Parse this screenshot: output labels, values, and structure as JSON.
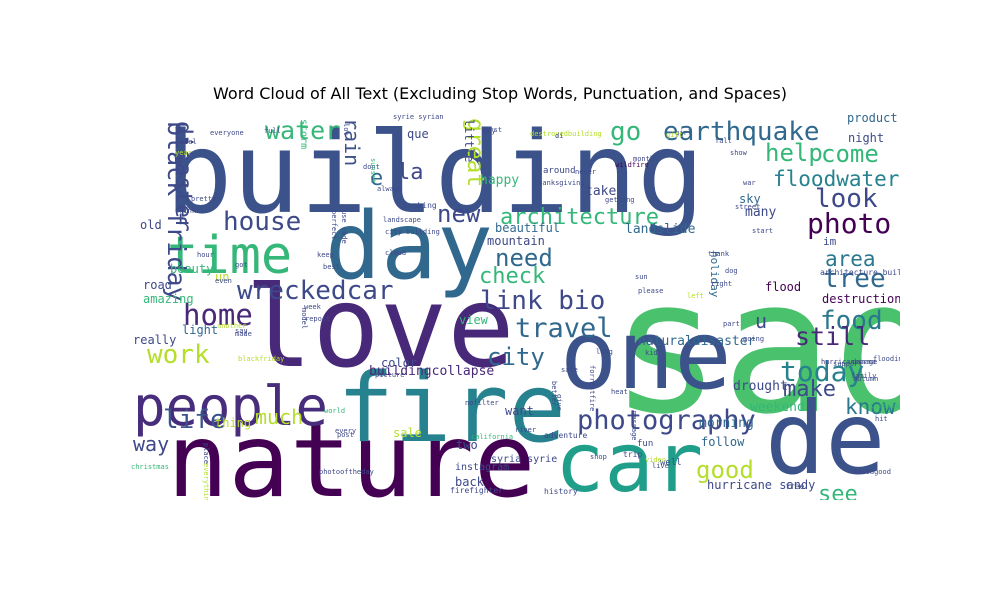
{
  "chart_data": {
    "type": "wordcloud",
    "title": "Word Cloud of All Text (Excluding Stop Words, Punctuation, and Spaces)",
    "words": [
      {
        "text": "building",
        "color": "#3b528b"
      },
      {
        "text": "sad",
        "color": "#4ac16d"
      },
      {
        "text": "love",
        "color": "#482878"
      },
      {
        "text": "day",
        "color": "#31688e"
      },
      {
        "text": "nature",
        "color": "#440154"
      },
      {
        "text": "fire",
        "color": "#26828e"
      },
      {
        "text": "one",
        "color": "#3b528b"
      },
      {
        "text": "car",
        "color": "#1f9e89"
      },
      {
        "text": "de",
        "color": "#3b528b"
      },
      {
        "text": "people",
        "color": "#472d7b"
      },
      {
        "text": "time",
        "color": "#35b779"
      },
      {
        "text": "wreckedcar",
        "color": "#3e4989"
      },
      {
        "text": "photo",
        "color": "#440154"
      },
      {
        "text": "earthquake",
        "color": "#31688e"
      },
      {
        "text": "photography",
        "color": "#3e4989"
      },
      {
        "text": "link bio",
        "color": "#3e4989"
      },
      {
        "text": "home",
        "color": "#482878"
      },
      {
        "text": "house",
        "color": "#3e4989"
      },
      {
        "text": "travel",
        "color": "#31688e"
      },
      {
        "text": "architecture",
        "color": "#35b779"
      },
      {
        "text": "water",
        "color": "#35b779"
      },
      {
        "text": "black friday",
        "color": "#3e4989"
      },
      {
        "text": "today",
        "color": "#26828e"
      },
      {
        "text": "food",
        "color": "#2a788e"
      },
      {
        "text": "need",
        "color": "#31688e"
      },
      {
        "text": "tree",
        "color": "#31688e"
      },
      {
        "text": "look",
        "color": "#3e4989"
      },
      {
        "text": "go",
        "color": "#35b779"
      },
      {
        "text": "work",
        "color": "#b5de2b"
      },
      {
        "text": "city",
        "color": "#31688e"
      },
      {
        "text": "life",
        "color": "#3b528b"
      },
      {
        "text": "good",
        "color": "#b5de2b"
      },
      {
        "text": "new",
        "color": "#3e4989"
      },
      {
        "text": "check",
        "color": "#35b779"
      },
      {
        "text": "help",
        "color": "#35b779"
      },
      {
        "text": "come",
        "color": "#35b779"
      },
      {
        "text": "floodwater",
        "color": "#26828e"
      },
      {
        "text": "area",
        "color": "#2a788e"
      },
      {
        "text": "still",
        "color": "#482878"
      },
      {
        "text": "make",
        "color": "#3e4989"
      },
      {
        "text": "see",
        "color": "#35b779"
      },
      {
        "text": "know",
        "color": "#2a788e"
      },
      {
        "text": "much",
        "color": "#b5de2b"
      },
      {
        "text": "disaster",
        "color": "#3e4989"
      },
      {
        "text": "great",
        "color": "#b5de2b"
      },
      {
        "text": "la",
        "color": "#3e4989"
      },
      {
        "text": "rain",
        "color": "#3b528b"
      },
      {
        "text": "way",
        "color": "#3e4989"
      },
      {
        "text": "e",
        "color": "#31688e"
      },
      {
        "text": "u",
        "color": "#3e4989"
      },
      {
        "text": "landslide",
        "color": "#31688e"
      },
      {
        "text": "destruction",
        "color": "#440154"
      },
      {
        "text": "buildingcollapse",
        "color": "#482878"
      },
      {
        "text": "flood",
        "color": "#440154"
      },
      {
        "text": "hurricane sandy",
        "color": "#3e4989"
      },
      {
        "text": "morning",
        "color": "#31688e"
      },
      {
        "text": "weekend",
        "color": "#35b779"
      },
      {
        "text": "drought",
        "color": "#3e4989"
      },
      {
        "text": "naturaldisaster",
        "color": "#31688e"
      },
      {
        "text": "night",
        "color": "#3e4989"
      },
      {
        "text": "product",
        "color": "#31688e"
      },
      {
        "text": "mountain",
        "color": "#3e4989"
      },
      {
        "text": "beautiful",
        "color": "#31688e"
      },
      {
        "text": "happy",
        "color": "#35b779"
      },
      {
        "text": "take",
        "color": "#3e4989"
      },
      {
        "text": "sky",
        "color": "#31688e"
      },
      {
        "text": "many",
        "color": "#3e4989"
      },
      {
        "text": "im",
        "color": "#3e4989"
      },
      {
        "text": "road",
        "color": "#3e4989"
      },
      {
        "text": "amazing",
        "color": "#35b779"
      },
      {
        "text": "beauty",
        "color": "#35b779"
      },
      {
        "text": "old",
        "color": "#3e4989"
      },
      {
        "text": "light",
        "color": "#31688e"
      },
      {
        "text": "really",
        "color": "#3e4989"
      },
      {
        "text": "holiday",
        "color": "#31688e"
      },
      {
        "text": "follow",
        "color": "#31688e"
      },
      {
        "text": "two",
        "color": "#3e4989"
      },
      {
        "text": "back",
        "color": "#3e4989"
      },
      {
        "text": "want",
        "color": "#3e4989"
      },
      {
        "text": "view",
        "color": "#35b779"
      },
      {
        "text": "color",
        "color": "#3e4989"
      },
      {
        "text": "thing",
        "color": "#b5de2b"
      },
      {
        "text": "un",
        "color": "#b5de2b"
      },
      {
        "text": "que",
        "color": "#3e4989"
      },
      {
        "text": "little",
        "color": "#3e4989"
      },
      {
        "text": "storm",
        "color": "#35b779"
      },
      {
        "text": "sale",
        "color": "#b5de2b"
      },
      {
        "text": "instagram",
        "color": "#3e4989"
      },
      {
        "text": "syria syrie",
        "color": "#3e4989"
      },
      {
        "text": "history",
        "color": "#3e4989"
      },
      {
        "text": "fun",
        "color": "#3e4989"
      },
      {
        "text": "trip",
        "color": "#3e4989"
      },
      {
        "text": "well",
        "color": "#3e4989"
      },
      {
        "text": "free",
        "color": "#3e4989"
      },
      {
        "text": "flooding",
        "color": "#3e4989"
      },
      {
        "text": "architecture building",
        "color": "#3e4989"
      },
      {
        "text": "hurricaneirma",
        "color": "#3e4989"
      },
      {
        "text": "autumn",
        "color": "#3e4989"
      },
      {
        "text": "treesfalling",
        "color": "#35b779"
      },
      {
        "text": "instagood",
        "color": "#3e4989"
      },
      {
        "text": "christmas",
        "color": "#35b779"
      },
      {
        "text": "photooftheday",
        "color": "#3e4989"
      },
      {
        "text": "firefighter",
        "color": "#3e4989"
      },
      {
        "text": "blackfriday",
        "color": "#b5de2b"
      },
      {
        "text": "picture",
        "color": "#3e4989"
      },
      {
        "text": "nofilter",
        "color": "#3e4989"
      },
      {
        "text": "california",
        "color": "#35b779"
      },
      {
        "text": "adventure",
        "color": "#3e4989"
      },
      {
        "text": "shop",
        "color": "#3e4989"
      },
      {
        "text": "river",
        "color": "#3e4989"
      },
      {
        "text": "world",
        "color": "#35b779"
      },
      {
        "text": "post",
        "color": "#3e4989"
      },
      {
        "text": "every",
        "color": "#3e4989"
      },
      {
        "text": "repost",
        "color": "#3e4989"
      },
      {
        "text": "week",
        "color": "#3e4989"
      },
      {
        "text": "best",
        "color": "#3e4989"
      },
      {
        "text": "keep",
        "color": "#3e4989"
      },
      {
        "text": "got",
        "color": "#3e4989"
      },
      {
        "text": "even",
        "color": "#3e4989"
      },
      {
        "text": "hour",
        "color": "#3e4989"
      },
      {
        "text": "say",
        "color": "#3e4989"
      },
      {
        "text": "made",
        "color": "#3e4989"
      },
      {
        "text": "another",
        "color": "#b5de2b"
      },
      {
        "text": "model",
        "color": "#3e4989"
      },
      {
        "text": "place",
        "color": "#3e4989"
      },
      {
        "text": "everything",
        "color": "#b5de2b"
      },
      {
        "text": "think",
        "color": "#3e4989"
      },
      {
        "text": "pretty",
        "color": "#3e4989"
      },
      {
        "text": "perfect",
        "color": "#3e4989"
      },
      {
        "text": "use code",
        "color": "#3e4989"
      },
      {
        "text": "cloud",
        "color": "#3e4989"
      },
      {
        "text": "landscape",
        "color": "#3e4989"
      },
      {
        "text": "looking",
        "color": "#3e4989"
      },
      {
        "text": "city building",
        "color": "#3e4989"
      },
      {
        "text": "always",
        "color": "#3e4989"
      },
      {
        "text": "dont",
        "color": "#3e4989"
      },
      {
        "text": "sunset",
        "color": "#35b779"
      },
      {
        "text": "lot",
        "color": "#3e4989"
      },
      {
        "text": "full",
        "color": "#3e4989"
      },
      {
        "text": "everyone",
        "color": "#3e4989"
      },
      {
        "text": "feel",
        "color": "#3e4989"
      },
      {
        "text": "year",
        "color": "#b5de2b"
      },
      {
        "text": "syrie syrian",
        "color": "#3e4989"
      },
      {
        "text": "guy",
        "color": "#3e4989"
      },
      {
        "text": "first",
        "color": "#3e4989"
      },
      {
        "text": "destroyedbuilding",
        "color": "#b5de2b"
      },
      {
        "text": "around",
        "color": "#3e4989"
      },
      {
        "text": "never",
        "color": "#3e4989"
      },
      {
        "text": "thanksgiving",
        "color": "#3e4989"
      },
      {
        "text": "wildfire",
        "color": "#440154"
      },
      {
        "text": "girl",
        "color": "#3e4989"
      },
      {
        "text": "di",
        "color": "#3e4989"
      },
      {
        "text": "gift",
        "color": "#b5de2b"
      },
      {
        "text": "month",
        "color": "#3e4989"
      },
      {
        "text": "fall",
        "color": "#3e4989"
      },
      {
        "text": "show",
        "color": "#3e4989"
      },
      {
        "text": "war",
        "color": "#3e4989"
      },
      {
        "text": "street",
        "color": "#3e4989"
      },
      {
        "text": "start",
        "color": "#3e4989"
      },
      {
        "text": "thank",
        "color": "#3e4989"
      },
      {
        "text": "sun",
        "color": "#3e4989"
      },
      {
        "text": "please",
        "color": "#3e4989"
      },
      {
        "text": "left",
        "color": "#b5de2b"
      },
      {
        "text": "part",
        "color": "#3e4989"
      },
      {
        "text": "going",
        "color": "#3e4989"
      },
      {
        "text": "long",
        "color": "#3e4989"
      },
      {
        "text": "kid",
        "color": "#3e4989"
      },
      {
        "text": "safe",
        "color": "#3e4989"
      },
      {
        "text": "heat",
        "color": "#3e4989"
      },
      {
        "text": "give",
        "color": "#3e4989"
      },
      {
        "text": "better",
        "color": "#3e4989"
      },
      {
        "text": "family",
        "color": "#3e4989"
      },
      {
        "text": "damage",
        "color": "#3e4989"
      },
      {
        "text": "support",
        "color": "#3e4989"
      },
      {
        "text": "video",
        "color": "#b5de2b"
      },
      {
        "text": "live",
        "color": "#3e4989"
      },
      {
        "text": "getting",
        "color": "#3e4989"
      },
      {
        "text": "forrestfire",
        "color": "#3e4989"
      },
      {
        "text": "message",
        "color": "#3e4989"
      },
      {
        "text": "hit",
        "color": "#3e4989"
      },
      {
        "text": "dog",
        "color": "#3e4989"
      },
      {
        "text": "right",
        "color": "#3e4989"
      },
      {
        "text": "wrecked wreckedcar",
        "color": "#3e4989"
      },
      {
        "text": "le",
        "color": "#b5de2b"
      },
      {
        "text": "first",
        "color": "#b5de2b"
      },
      {
        "text": "day",
        "color": "#b5de2b"
      }
    ]
  }
}
